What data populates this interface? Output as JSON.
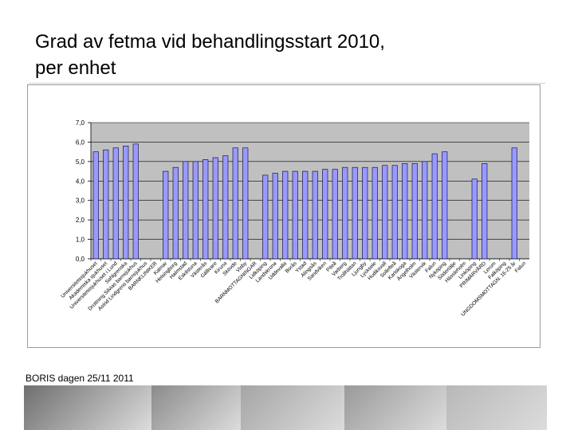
{
  "slide": {
    "title_line1": "Grad av fetma vid behandlingsstart 2010,",
    "title_line2": "per enhet",
    "footer": "BORIS dagen 25/11 2011"
  },
  "colors": {
    "plot_bg": "#c0c0c0",
    "bar_fill": "#9999ff",
    "bar_stroke": "#000033",
    "grid": "#000000"
  },
  "chart_data": {
    "type": "bar",
    "title": "",
    "xlabel": "",
    "ylabel": "",
    "ylim": [
      0,
      7
    ],
    "yticks": [
      "0,0",
      "1,0",
      "2,0",
      "3,0",
      "4,0",
      "5,0",
      "6,0",
      "7,0"
    ],
    "grid": true,
    "legend": "none",
    "categories": [
      "Universitetssjukhuset",
      "Akademiska sjukhuset",
      "Universitetssjukhuset i Lund",
      "Sahlgrenska",
      "Drottning Silvias barnsjukhus",
      "Astrid Lindgrens barnsjukhus",
      "BARNKLINIKER",
      "Kalmar",
      "Helsingborg",
      "Halmstad",
      "Eskilstuna",
      "Västerås",
      "Gällivare",
      "Kiruna",
      "Skövde",
      "Visby",
      "BARNMOTTAGNINGAR",
      "Lidköping",
      "Landskrona",
      "Uddevalla",
      "Borås",
      "Ystad",
      "Alingsås",
      "Sandviken",
      "Piteå",
      "Varberg",
      "Trollhättan",
      "Ljungby",
      "Lycksele",
      "Hudiksvall",
      "Sollefteå",
      "Karlskoga",
      "Ängelholm",
      "Västervik",
      "Falun",
      "Nyköping",
      "Södertälje",
      "Hässleholm",
      "Linköping",
      "PRIMÄRVÅRD",
      "Lerum",
      "Falköping",
      "UNGDOMSMOTTAGN. 16-25 år",
      "Falun"
    ],
    "values": [
      5.5,
      5.6,
      5.7,
      5.8,
      5.9,
      null,
      null,
      4.5,
      4.7,
      5.0,
      5.0,
      5.1,
      5.2,
      5.3,
      5.7,
      5.7,
      null,
      4.3,
      4.4,
      4.5,
      4.5,
      4.5,
      4.5,
      4.6,
      4.6,
      4.7,
      4.7,
      4.7,
      4.7,
      4.8,
      4.8,
      4.9,
      4.9,
      5.0,
      5.4,
      5.5,
      null,
      null,
      4.1,
      4.9,
      null,
      null,
      5.7,
      null
    ]
  },
  "footer_photos": [
    {
      "name": "photo-boy-pointing",
      "color": "#6f6f6f"
    },
    {
      "name": "photo-child-portrait",
      "color": "#8b8b8b"
    },
    {
      "name": "photo-hands-play",
      "color": "#a5a5a5"
    },
    {
      "name": "photo-legs-feet",
      "color": "#9a9a9a"
    },
    {
      "name": "photo-arms-hands",
      "color": "#b8b8b8"
    }
  ]
}
